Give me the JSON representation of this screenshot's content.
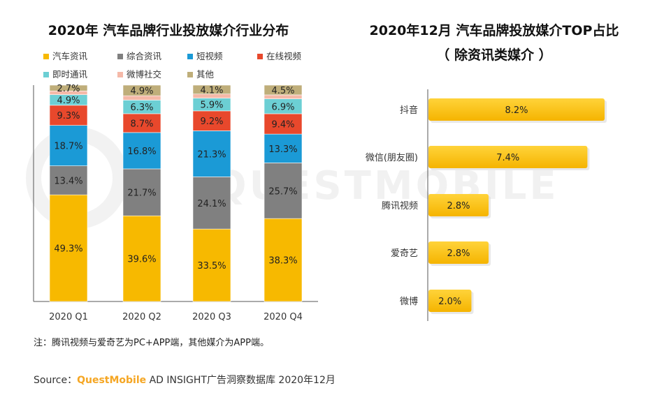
{
  "left_chart": {
    "title": "2020年 汽车品牌行业投放媒介行业分布",
    "legend": [
      {
        "name": "汽车资讯",
        "color": "#F7B900"
      },
      {
        "name": "综合资讯",
        "color": "#808080"
      },
      {
        "name": "短视频",
        "color": "#1B9AD6"
      },
      {
        "name": "在线视频",
        "color": "#E8482C"
      },
      {
        "name": "即时通讯",
        "color": "#6CCFD4"
      },
      {
        "name": "微博社交",
        "color": "#F5B9A8"
      },
      {
        "name": "其他",
        "color": "#BFAE7A"
      }
    ]
  },
  "right_chart": {
    "title_line1": "2020年12月 汽车品牌投放媒介TOP占比",
    "title_line2": "（ 除资讯类媒介 ）"
  },
  "chart_data": [
    {
      "type": "bar",
      "stacked": true,
      "title": "2020年 汽车品牌行业投放媒介行业分布",
      "categories": [
        "2020 Q1",
        "2020 Q2",
        "2020 Q3",
        "2020 Q4"
      ],
      "series": [
        {
          "name": "汽车资讯",
          "values": [
            49.3,
            39.6,
            33.5,
            38.3
          ],
          "labels": [
            "49.3%",
            "39.6%",
            "33.5%",
            "38.3%"
          ]
        },
        {
          "name": "综合资讯",
          "values": [
            13.4,
            21.7,
            24.1,
            25.7
          ],
          "labels": [
            "13.4%",
            "21.7%",
            "24.1%",
            "25.7%"
          ]
        },
        {
          "name": "短视频",
          "values": [
            18.7,
            16.8,
            21.3,
            13.3
          ],
          "labels": [
            "18.7%",
            "16.8%",
            "21.3%",
            "13.3%"
          ]
        },
        {
          "name": "在线视频",
          "values": [
            9.3,
            8.7,
            9.2,
            9.4
          ],
          "labels": [
            "9.3%",
            "8.7%",
            "9.2%",
            "9.4%"
          ]
        },
        {
          "name": "即时通讯",
          "values": [
            4.9,
            6.3,
            5.9,
            6.9
          ],
          "labels": [
            "4.9%",
            "6.3%",
            "5.9%",
            "6.9%"
          ]
        },
        {
          "name": "微博社交",
          "values": [
            1.7,
            2.0,
            1.9,
            1.8
          ],
          "labels": [
            "",
            "",
            "",
            ""
          ]
        },
        {
          "name": "其他",
          "values": [
            2.7,
            4.9,
            4.1,
            4.5
          ],
          "labels": [
            "2.7%",
            "4.9%",
            "4.1%",
            "4.5%"
          ]
        }
      ],
      "ylim": [
        0,
        100
      ],
      "legend_position": "top"
    },
    {
      "type": "bar",
      "orientation": "horizontal",
      "title": "2020年12月 汽车品牌投放媒介TOP占比（ 除资讯类媒介 ）",
      "categories": [
        "抖音",
        "微信(朋友圈)",
        "腾讯视频",
        "爱奇艺",
        "微博"
      ],
      "values": [
        8.2,
        7.4,
        2.8,
        2.8,
        2.0
      ],
      "labels": [
        "8.2%",
        "7.4%",
        "2.8%",
        "2.8%",
        "2.0%"
      ],
      "color": "#F7B900"
    }
  ],
  "footer": {
    "note": "注：腾讯视频与爱奇艺为PC+APP端，其他媒介为APP端。",
    "source_prefix": "Source：",
    "source_brand": "QuestMobile",
    "source_suffix": " AD INSIGHT广告洞察数据库 2020年12月"
  },
  "watermark": "QUESTMOBILE"
}
